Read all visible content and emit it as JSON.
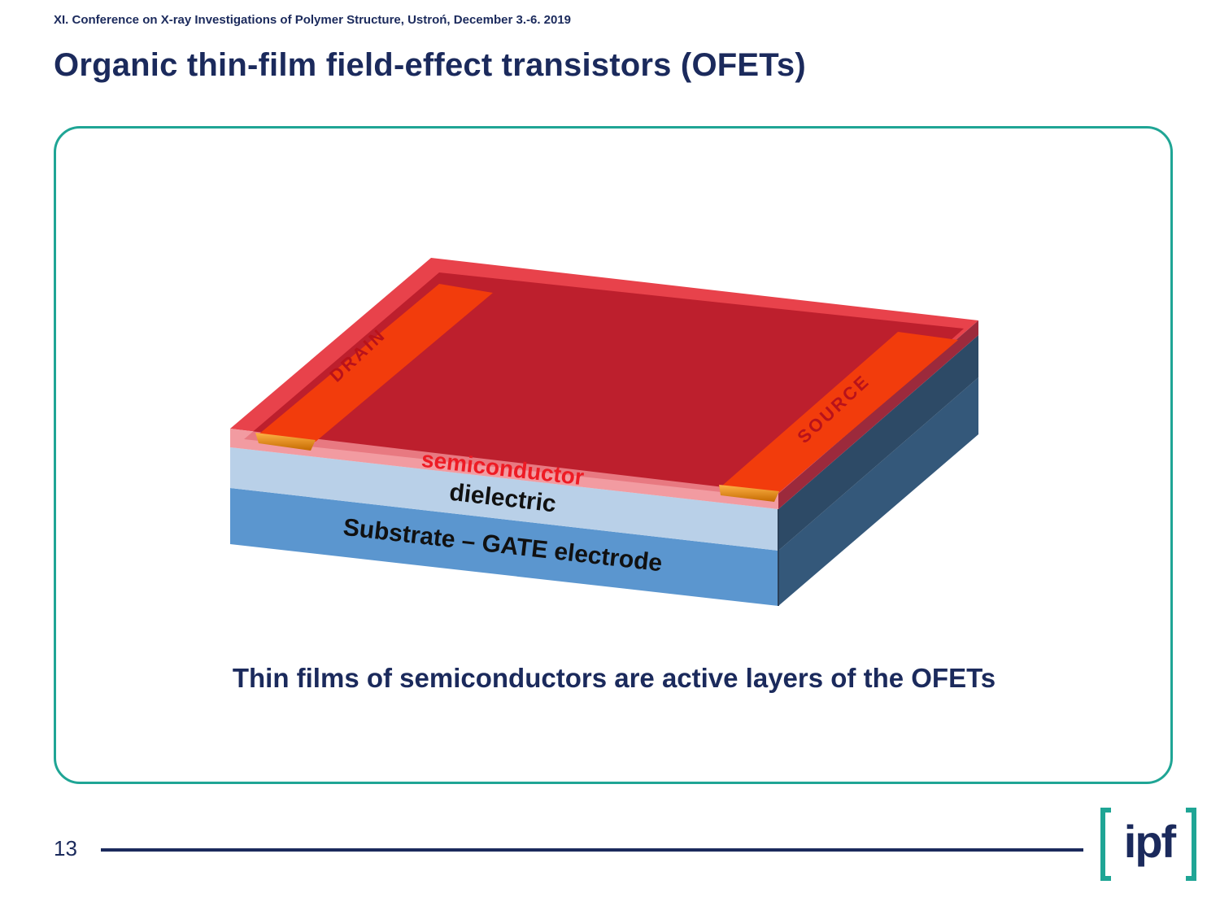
{
  "header": {
    "conference": "XI. Conference on X-ray Investigations of Polymer Structure, Ustroń, December 3.-6. 2019",
    "title": "Organic thin-film field-effect transistors (OFETs)"
  },
  "diagram": {
    "drain_label": "DRAIN",
    "source_label": "SOURCE",
    "semiconductor_label": "semiconductor",
    "dielectric_label": "dielectric",
    "substrate_label": "Substrate – GATE electrode",
    "colors": {
      "semiconductor": "#e8424b",
      "electrode": "#f23c0c",
      "dielectric": "#b9d0e8",
      "substrate": "#5b96cf",
      "side": "#2e4a66"
    }
  },
  "caption": "Thin films of semiconductors are active layers of the OFETs",
  "footer": {
    "page_number": "13",
    "logo_text": "ipf"
  }
}
